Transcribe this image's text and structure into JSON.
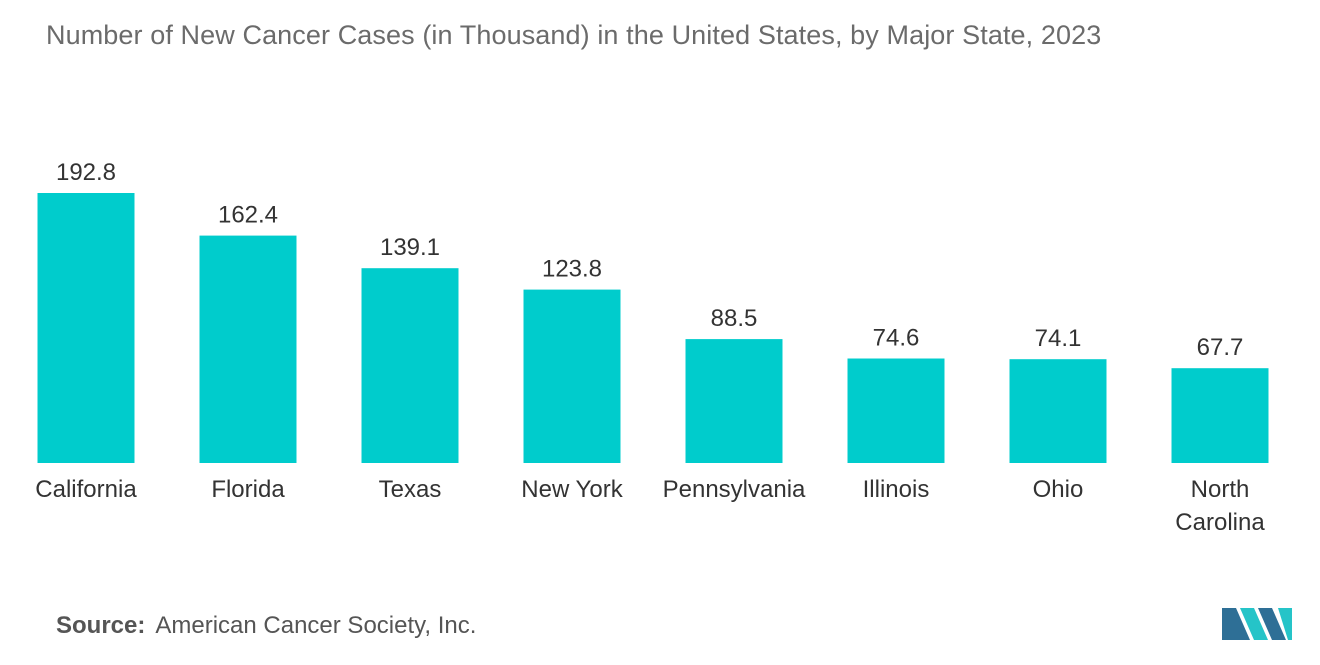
{
  "title": "Number of New Cancer Cases (in Thousand) in the United States, by Major State, 2023",
  "source": {
    "label": "Source:",
    "text": "American Cancer Society, Inc."
  },
  "colors": {
    "bar": "#00cccc",
    "title": "#6b6b6b",
    "label": "#333333",
    "logo_dark": "#2e6f96",
    "logo_light": "#25c4c8"
  },
  "chart_data": {
    "type": "bar",
    "categories": [
      "California",
      "Florida",
      "Texas",
      "New York",
      "Pennsylvania",
      "Illinois",
      "Ohio",
      "North Carolina"
    ],
    "category_lines": [
      [
        "California"
      ],
      [
        "Florida"
      ],
      [
        "Texas"
      ],
      [
        "New York"
      ],
      [
        "Pennsylvania"
      ],
      [
        "Illinois"
      ],
      [
        "Ohio"
      ],
      [
        "North",
        "Carolina"
      ]
    ],
    "values": [
      192.8,
      162.4,
      139.1,
      123.8,
      88.5,
      74.6,
      74.1,
      67.7
    ],
    "value_labels": [
      "192.8",
      "162.4",
      "139.1",
      "123.8",
      "88.5",
      "74.6",
      "74.1",
      "67.7"
    ],
    "title": "Number of New Cancer Cases (in Thousand) in the United States, by Major State, 2023",
    "xlabel": "",
    "ylabel": "",
    "ylim": [
      0,
      192.8
    ],
    "grid": false,
    "legend": "none"
  }
}
